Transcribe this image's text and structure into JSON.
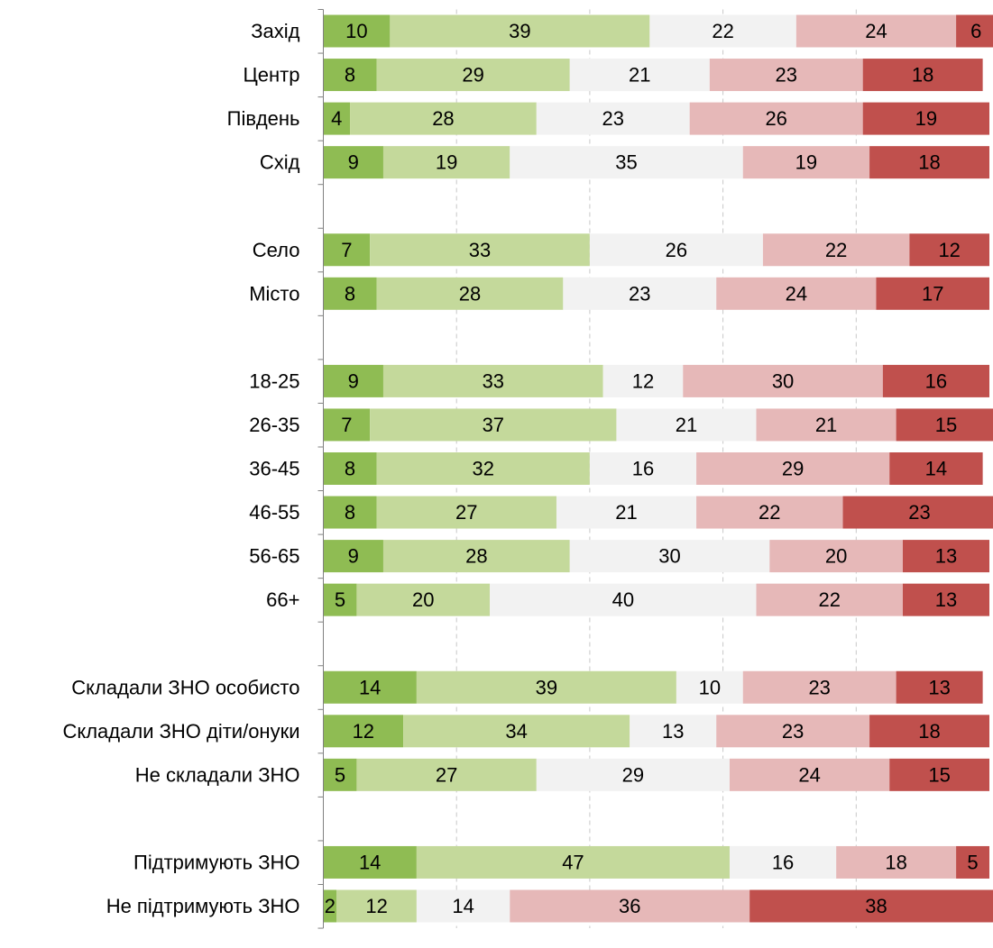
{
  "chart_data": {
    "type": "bar",
    "orientation": "horizontal",
    "stacked": true,
    "xlim": [
      0,
      100
    ],
    "grid": true,
    "legend": "none",
    "series_colors": [
      "#8fbc53",
      "#c4d99b",
      "#f2f2f2",
      "#e6b8b8",
      "#c0504d"
    ],
    "categories": [
      "Захід",
      "Центр",
      "Південь",
      "Схід",
      "",
      "Село",
      "Місто",
      "",
      "18-25",
      "26-35",
      "36-45",
      "46-55",
      "56-65",
      "66+",
      "",
      "Складали ЗНО особисто",
      "Складали ЗНО діти/онуки",
      "Не складали ЗНО",
      "",
      "Підтримують ЗНО",
      "Не підтримують ЗНО"
    ],
    "series": [
      {
        "values": [
          10,
          8,
          4,
          9,
          null,
          7,
          8,
          null,
          9,
          7,
          8,
          8,
          9,
          5,
          null,
          14,
          12,
          5,
          null,
          14,
          2
        ]
      },
      {
        "values": [
          39,
          29,
          28,
          19,
          null,
          33,
          28,
          null,
          33,
          37,
          32,
          27,
          28,
          20,
          null,
          39,
          34,
          27,
          null,
          47,
          12
        ]
      },
      {
        "values": [
          22,
          21,
          23,
          35,
          null,
          26,
          23,
          null,
          12,
          21,
          16,
          21,
          30,
          40,
          null,
          10,
          13,
          29,
          null,
          16,
          14
        ]
      },
      {
        "values": [
          24,
          23,
          26,
          19,
          null,
          22,
          24,
          null,
          30,
          21,
          29,
          22,
          20,
          22,
          null,
          23,
          23,
          24,
          null,
          18,
          36
        ]
      },
      {
        "values": [
          6,
          18,
          19,
          18,
          null,
          12,
          17,
          null,
          16,
          15,
          14,
          23,
          13,
          13,
          null,
          13,
          18,
          15,
          null,
          5,
          38
        ]
      }
    ]
  }
}
